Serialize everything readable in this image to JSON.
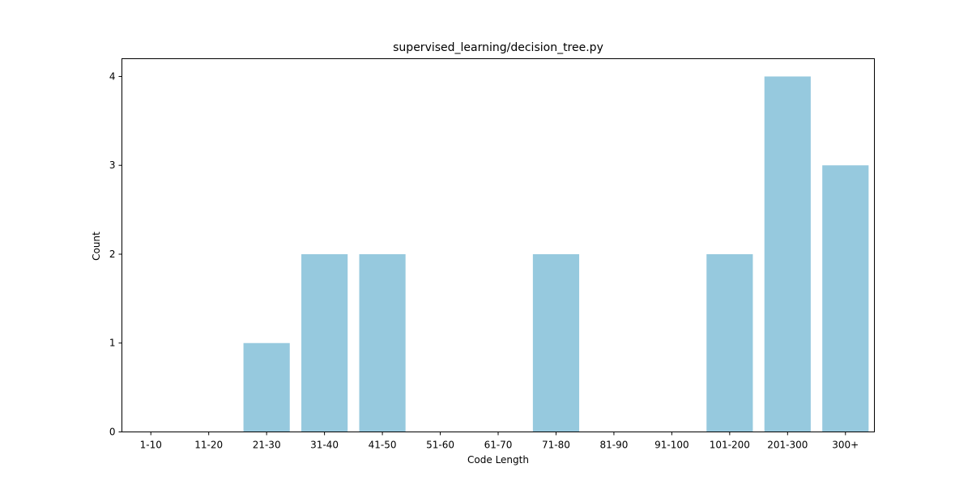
{
  "chart_data": {
    "type": "bar",
    "title": "supervised_learning/decision_tree.py",
    "xlabel": "Code Length",
    "ylabel": "Count",
    "categories": [
      "1-10",
      "11-20",
      "21-30",
      "31-40",
      "41-50",
      "51-60",
      "61-70",
      "71-80",
      "81-90",
      "91-100",
      "101-200",
      "201-300",
      "300+"
    ],
    "values": [
      0,
      0,
      1,
      2,
      2,
      0,
      0,
      2,
      0,
      0,
      2,
      4,
      3
    ],
    "ylim": [
      0,
      4.2
    ],
    "yticks": [
      0,
      1,
      2,
      3,
      4
    ],
    "bar_color": "#96c9de",
    "grid": false,
    "legend": "none"
  }
}
